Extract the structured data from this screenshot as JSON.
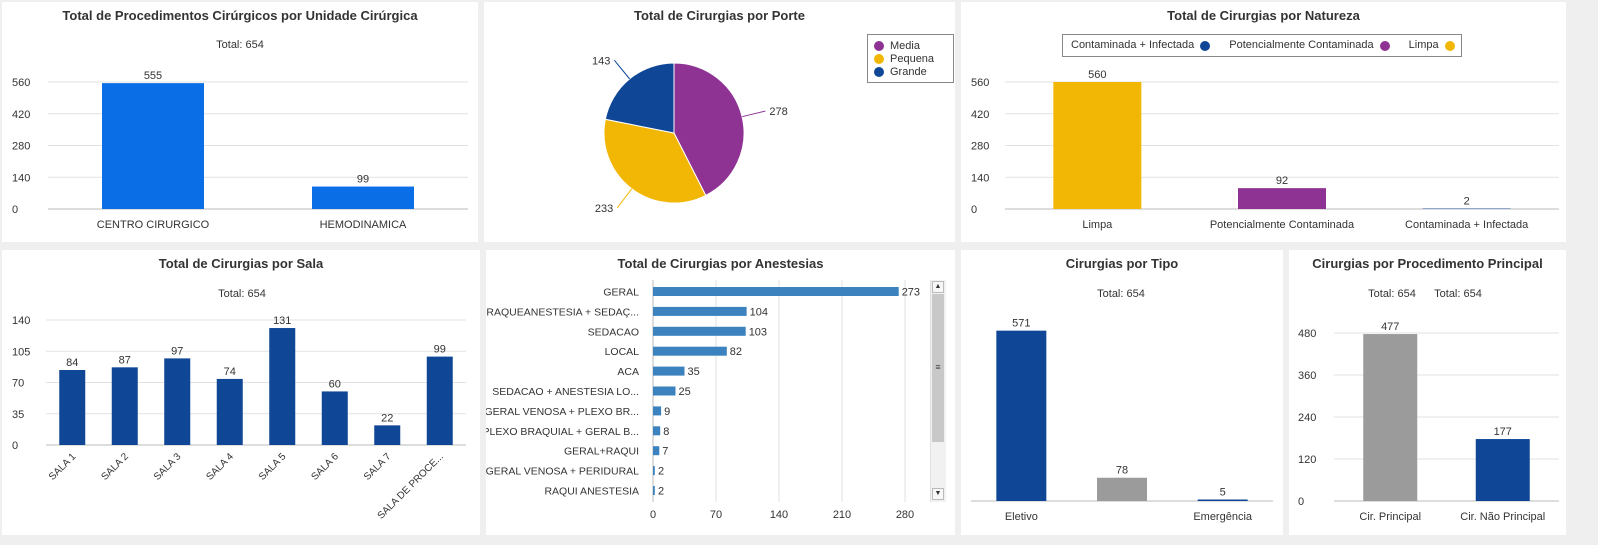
{
  "colors": {
    "blue_bright": "#0a6fe6",
    "navy": "#0f4796",
    "purple": "#8e3393",
    "gold": "#f2b705",
    "gray": "#9b9b9b",
    "steel": "#3b82bf"
  },
  "chart_data": [
    {
      "id": "unidade",
      "type": "bar",
      "title": "Total de Procedimentos Cirúrgicos por Unidade Cirúrgica",
      "subtitle": "Total: 654",
      "categories": [
        "CENTRO CIRURGICO",
        "HEMODINAMICA"
      ],
      "values": [
        555,
        99
      ],
      "ylim": [
        0,
        560
      ],
      "yticks": [
        0,
        140,
        280,
        420,
        560
      ],
      "grid": true
    },
    {
      "id": "porte",
      "type": "pie",
      "title": "Total de Cirurgias por Porte",
      "categories": [
        "Media",
        "Pequena",
        "Grande"
      ],
      "values": [
        278,
        233,
        143
      ],
      "legend_position": "top-right"
    },
    {
      "id": "natureza",
      "type": "bar",
      "title": "Total de Cirurgias por Natureza",
      "legend": [
        "Contaminada + Infectada",
        "Potencialmente Contaminada",
        "Limpa"
      ],
      "legend_position": "top",
      "categories": [
        "Limpa",
        "Potencialmente Contaminada",
        "Contaminada + Infectada"
      ],
      "values": [
        560,
        92,
        2
      ],
      "ylim": [
        0,
        560
      ],
      "yticks": [
        0,
        140,
        280,
        420,
        560
      ],
      "grid": true
    },
    {
      "id": "sala",
      "type": "bar",
      "title": "Total de Cirurgias por Sala",
      "subtitle": "Total: 654",
      "categories": [
        "SALA 1",
        "SALA 2",
        "SALA 3",
        "SALA 4",
        "SALA 5",
        "SALA 6",
        "SALA 7",
        "SALA DE PROCE..."
      ],
      "values": [
        84,
        87,
        97,
        74,
        131,
        60,
        22,
        99
      ],
      "ylim": [
        0,
        140
      ],
      "yticks": [
        0,
        35,
        70,
        105,
        140
      ],
      "grid": true
    },
    {
      "id": "anestesias",
      "type": "bar",
      "orientation": "horizontal",
      "title": "Total de Cirurgias por Anestesias",
      "categories": [
        "GERAL",
        "RAQUEANESTESIA + SEDAÇ...",
        "SEDACAO",
        "LOCAL",
        "ACA",
        "SEDACAO + ANESTESIA LO...",
        "GERAL VENOSA + PLEXO BR...",
        "PLEXO BRAQUIAL + GERAL B...",
        "GERAL+RAQUI",
        "GERAL VENOSA + PERIDURAL",
        "RAQUI ANESTESIA"
      ],
      "values": [
        273,
        104,
        103,
        82,
        35,
        25,
        9,
        8,
        7,
        2,
        2
      ],
      "xlim": [
        0,
        300
      ],
      "xticks": [
        0,
        70,
        140,
        210,
        280
      ],
      "grid": true
    },
    {
      "id": "tipo",
      "type": "bar",
      "title": "Cirurgias por Tipo",
      "subtitle": "Total: 654",
      "categories": [
        "Eletivo",
        "",
        "Emergência"
      ],
      "values": [
        571,
        78,
        5
      ],
      "ylim": [
        0,
        600
      ],
      "grid": false
    },
    {
      "id": "principal",
      "type": "bar",
      "title": "Cirurgias por Procedimento Principal",
      "subtitle": "Total: 654",
      "subtitle2": "Total: 654",
      "categories": [
        "Cir. Principal",
        "Cir. Não Principal"
      ],
      "values": [
        477,
        177
      ],
      "ylim": [
        0,
        480
      ],
      "yticks": [
        0,
        120,
        240,
        360,
        480
      ],
      "grid": true
    }
  ]
}
